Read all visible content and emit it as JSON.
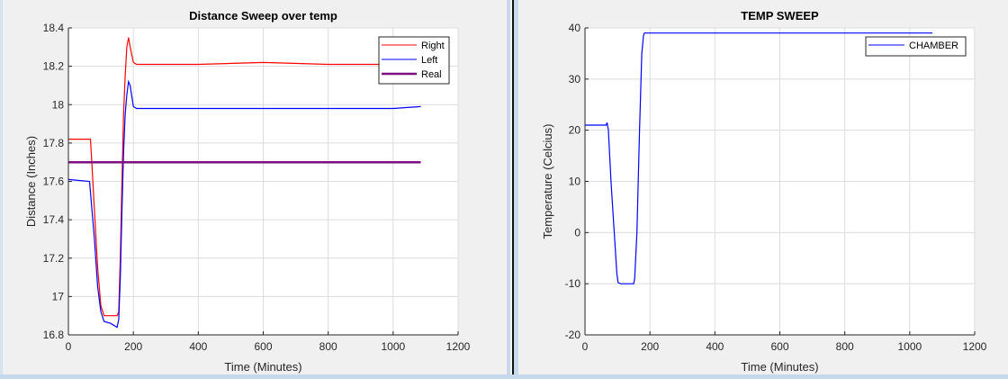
{
  "chart_data": [
    {
      "type": "line",
      "title": "Distance Sweep over temp",
      "xlabel": "Time (Minutes)",
      "ylabel": "Distance (Inches)",
      "xlim": [
        0,
        1200
      ],
      "ylim": [
        16.8,
        18.4
      ],
      "xticks": [
        "0",
        "200",
        "400",
        "600",
        "800",
        "1000",
        "1200"
      ],
      "yticks": [
        "16.8",
        "17",
        "17.2",
        "17.4",
        "17.6",
        "17.8",
        "18",
        "18.2",
        "18.4"
      ],
      "grid": true,
      "legend_position": "upper right",
      "series": [
        {
          "name": "Right",
          "color": "#ff0000",
          "x": [
            0,
            68,
            72,
            80,
            90,
            100,
            110,
            150,
            155,
            160,
            165,
            170,
            175,
            180,
            185,
            190,
            200,
            210,
            400,
            600,
            800,
            1000,
            1085
          ],
          "y": [
            17.82,
            17.82,
            17.7,
            17.45,
            17.15,
            16.95,
            16.9,
            16.9,
            16.92,
            17.2,
            17.6,
            17.95,
            18.15,
            18.3,
            18.35,
            18.3,
            18.22,
            18.21,
            18.21,
            18.22,
            18.21,
            18.21,
            18.21
          ]
        },
        {
          "name": "Left",
          "color": "#0000ff",
          "x": [
            0,
            65,
            70,
            80,
            90,
            100,
            110,
            130,
            150,
            155,
            160,
            165,
            170,
            175,
            180,
            185,
            190,
            200,
            210,
            400,
            600,
            800,
            1000,
            1085
          ],
          "y": [
            17.61,
            17.6,
            17.5,
            17.3,
            17.05,
            16.92,
            16.87,
            16.86,
            16.84,
            16.88,
            17.1,
            17.45,
            17.75,
            17.95,
            18.05,
            18.12,
            18.1,
            17.99,
            17.98,
            17.98,
            17.98,
            17.98,
            17.98,
            17.99
          ]
        },
        {
          "name": "Real",
          "color": "#7e0f80",
          "x": [
            0,
            1085
          ],
          "y": [
            17.7,
            17.7
          ]
        }
      ]
    },
    {
      "type": "line",
      "title": "TEMP SWEEP",
      "xlabel": "Time (Minutes)",
      "ylabel": "Temperature (Celcius)",
      "xlim": [
        0,
        1200
      ],
      "ylim": [
        -20,
        40
      ],
      "xticks": [
        "0",
        "200",
        "400",
        "600",
        "800",
        "1000",
        "1200"
      ],
      "yticks": [
        "-20",
        "-10",
        "0",
        "10",
        "20",
        "30",
        "40"
      ],
      "grid": true,
      "legend_position": "upper right",
      "series": [
        {
          "name": "CHAMBER",
          "color": "#0000ff",
          "x": [
            0,
            65,
            68,
            72,
            80,
            90,
            98,
            102,
            110,
            150,
            153,
            160,
            168,
            175,
            180,
            183,
            1070
          ],
          "y": [
            21,
            21,
            21.5,
            20,
            10,
            0,
            -8,
            -9.8,
            -10,
            -10,
            -9,
            0,
            20,
            35,
            38.5,
            39,
            39
          ]
        }
      ]
    }
  ]
}
